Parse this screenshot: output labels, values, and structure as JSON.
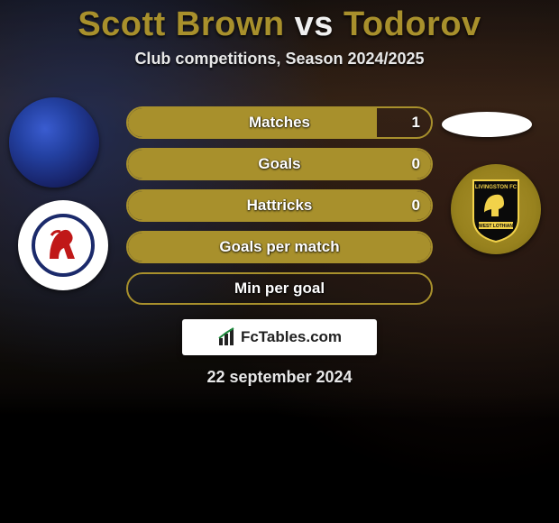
{
  "title": {
    "player1": "Scott Brown",
    "vs": "vs",
    "player2": "Todorov",
    "color1": "#a8902c",
    "color_vs": "#f5f5f5",
    "color2": "#a8902c"
  },
  "subtitle": "Club competitions, Season 2024/2025",
  "accent_color": "#a8902c",
  "border_color": "#a8902c",
  "stats": [
    {
      "label": "Matches",
      "left_value": "",
      "right_value": "1",
      "fill_pct": 82
    },
    {
      "label": "Goals",
      "left_value": "",
      "right_value": "0",
      "fill_pct": 100
    },
    {
      "label": "Hattricks",
      "left_value": "",
      "right_value": "0",
      "fill_pct": 100
    },
    {
      "label": "Goals per match",
      "left_value": "",
      "right_value": "",
      "fill_pct": 100
    },
    {
      "label": "Min per goal",
      "left_value": "",
      "right_value": "",
      "fill_pct": 0
    }
  ],
  "watermark": "FcTables.com",
  "date": "22 september 2024",
  "badges": {
    "left_top": {
      "name": "team-photo-a"
    },
    "left_bot": {
      "name": "raith-rovers-crest"
    },
    "right_top": {
      "name": "blank-oval"
    },
    "right_bot": {
      "name": "livingston-crest"
    }
  }
}
